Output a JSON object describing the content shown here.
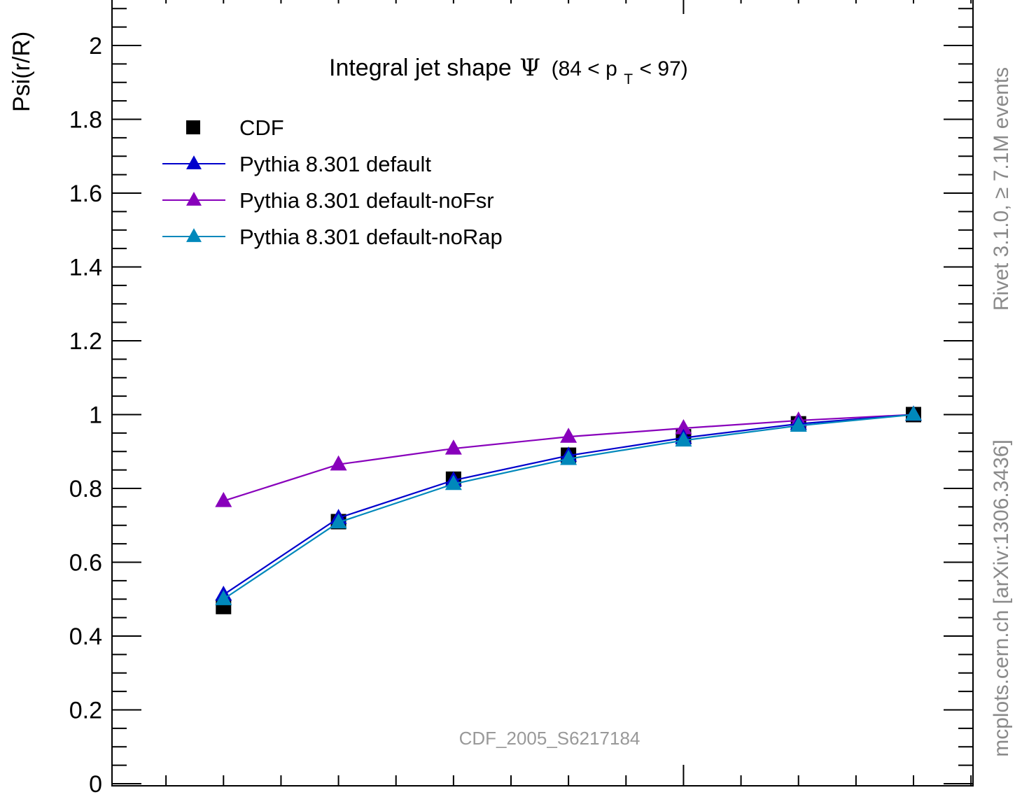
{
  "chart_data": {
    "type": "line",
    "title_main": "Integral jet shape",
    "title_symbol": "Ψ",
    "title_range_open": "(84 < p",
    "title_range_sub": "T",
    "title_range_close": " < 97)",
    "ylabel": "Psi(r/R)",
    "ylim": [
      0,
      2.1
    ],
    "xlim": [
      0.0,
      1.05
    ],
    "y_ticks": [
      0,
      0.2,
      0.4,
      0.6,
      0.8,
      1,
      1.2,
      1.4,
      1.6,
      1.8,
      2
    ],
    "y_tick_labels": [
      "0",
      "0.2",
      "0.4",
      "0.6",
      "0.8",
      "1",
      "1.2",
      "1.4",
      "1.6",
      "1.8",
      "2"
    ],
    "analysis_id": "CDF_2005_S6217184",
    "side_label_top": "Rivet 3.1.0, ≥ 7.1M events",
    "side_label_bottom": "mcplots.cern.ch [arXiv:1306.3436]",
    "x": [
      0.1,
      0.2,
      0.3,
      0.4,
      0.5,
      0.6,
      0.7
    ],
    "series": [
      {
        "name": "CDF",
        "style": "marker",
        "marker": "square",
        "color": "#000000",
        "values": [
          0.48,
          0.71,
          0.825,
          0.89,
          0.94,
          0.975,
          1.0
        ]
      },
      {
        "name": "Pythia 8.301 default",
        "style": "line",
        "marker": "triangle",
        "color": "#0000cc",
        "values": [
          0.512,
          0.72,
          0.822,
          0.889,
          0.937,
          0.975,
          1.0
        ]
      },
      {
        "name": "Pythia 8.301 default-noFsr",
        "style": "line",
        "marker": "triangle",
        "color": "#8800bb",
        "values": [
          0.766,
          0.865,
          0.908,
          0.94,
          0.963,
          0.984,
          1.0
        ]
      },
      {
        "name": "Pythia 8.301 default-noRap",
        "style": "line",
        "marker": "triangle",
        "color": "#0088bb",
        "values": [
          0.5,
          0.708,
          0.812,
          0.88,
          0.93,
          0.97,
          1.0
        ]
      }
    ]
  }
}
